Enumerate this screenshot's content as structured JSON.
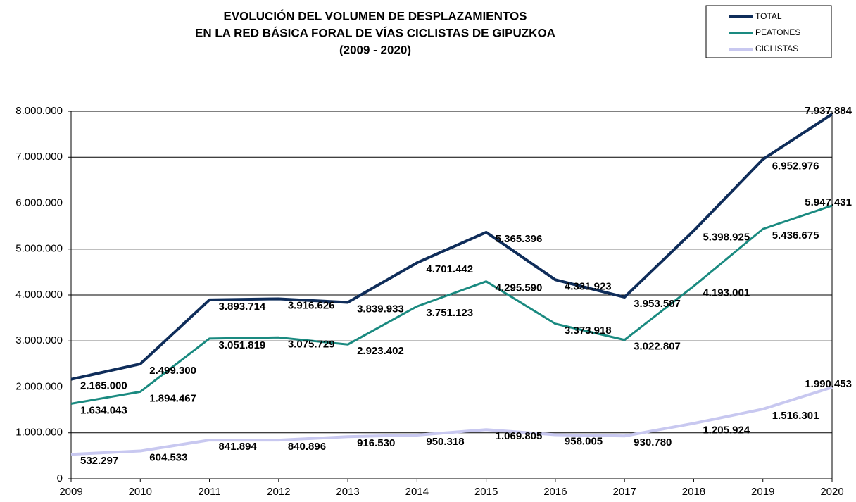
{
  "chart_data": {
    "type": "line",
    "title": [
      "EVOLUCIÓN DEL VOLUMEN DE DESPLAZAMIENTOS",
      "EN LA RED BÁSICA FORAL DE VÍAS CICLISTAS DE GIPUZKOA",
      "(2009 - 2020)"
    ],
    "x": [
      2009,
      2010,
      2011,
      2012,
      2013,
      2014,
      2015,
      2016,
      2017,
      2018,
      2019,
      2020
    ],
    "xlim": [
      2009,
      2020
    ],
    "xticks": [
      2009,
      2010,
      2011,
      2012,
      2013,
      2014,
      2015,
      2016,
      2017,
      2018,
      2019,
      2020
    ],
    "ylim": [
      0,
      8000000
    ],
    "yticks": [
      0,
      {
        "value": 1000000,
        "label": "1.000.000"
      },
      {
        "value": 2000000,
        "label": "2.000.000"
      },
      {
        "value": 3000000,
        "label": "3.000.000"
      },
      {
        "value": 4000000,
        "label": "4.000.000"
      },
      {
        "value": 5000000,
        "label": "5.000.000"
      },
      {
        "value": 6000000,
        "label": "6.000.000"
      },
      {
        "value": 7000000,
        "label": "7.000.000"
      },
      {
        "value": 8000000,
        "label": "8.000.000"
      }
    ],
    "grid": true,
    "legend": "top-right",
    "series": [
      {
        "name": "TOTAL",
        "color": "#0f2d5a",
        "values": [
          2165000,
          2499300,
          3893714,
          3916626,
          3839933,
          4701442,
          5365396,
          4331923,
          3953587,
          5398925,
          6952976,
          7937884
        ],
        "value_labels": [
          "2.165.000",
          "2.499.300",
          "3.893.714",
          "3.916.626",
          "3.839.933",
          "4.701.442",
          "5.365.396",
          "4.331.923",
          "3.953.587",
          "5.398.925",
          "6.952.976",
          "7.937.884"
        ]
      },
      {
        "name": "PEATONES",
        "color": "#1a8a80",
        "values": [
          1634043,
          1894467,
          3051819,
          3075729,
          2923402,
          3751123,
          4295590,
          3373918,
          3022807,
          4193001,
          5436675,
          5947431
        ],
        "value_labels": [
          "1.634.043",
          "1.894.467",
          "3.051.819",
          "3.075.729",
          "2.923.402",
          "3.751.123",
          "4.295.590",
          "3.373.918",
          "3.022.807",
          "4.193.001",
          "5.436.675",
          "5.947.431"
        ]
      },
      {
        "name": "CICLISTAS",
        "color": "#c8c8f0",
        "values": [
          532297,
          604533,
          841894,
          840896,
          916530,
          950318,
          1069805,
          958005,
          930780,
          1205924,
          1516301,
          1990453
        ],
        "value_labels": [
          "532.297",
          "604.533",
          "841.894",
          "840.896",
          "916.530",
          "950.318",
          "1.069.805",
          "958.005",
          "930.780",
          "1.205.924",
          "1.516.301",
          "1.990.453"
        ]
      }
    ]
  }
}
